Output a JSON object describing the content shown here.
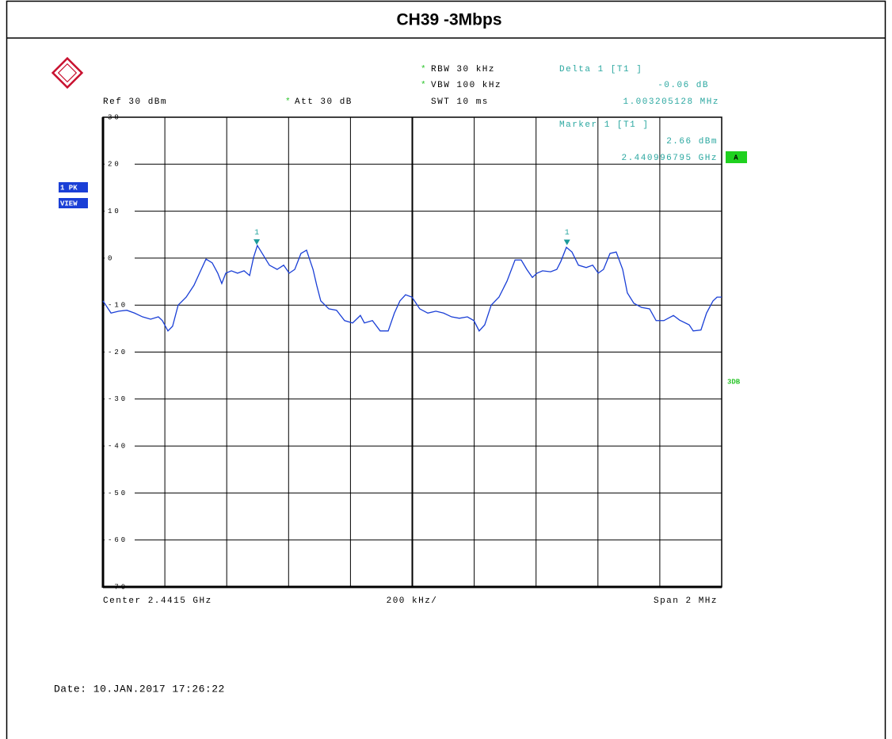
{
  "chart_data": {
    "type": "line",
    "title": "CH39 -3Mbps",
    "star": "*",
    "rbw": "RBW 30 kHz",
    "vbw": "VBW 100 kHz",
    "swt": "SWT 10 ms",
    "ref": "Ref 30 dBm",
    "att": "Att 30 dB",
    "delta_title": "Delta 1 [T1 ]",
    "delta_level": "-0.06 dB",
    "delta_freq": "1.003205128 MHz",
    "marker_title": "Marker 1 [T1 ]",
    "marker_level": "2.66 dBm",
    "marker_freq": "2.440996795 GHz",
    "side_a": "A",
    "trace_pk": "1 PK",
    "trace_view": "VIEW",
    "side_3db": "3DB",
    "center": "Center 2.4415 GHz",
    "div": "200 kHz/",
    "span": "Span 2 MHz",
    "date": "Date: 10.JAN.2017 17:26:22",
    "xlim": [
      2440.5,
      2442.5
    ],
    "ylim": [
      -70,
      30
    ],
    "yticks": [
      30,
      20,
      10,
      0,
      -10,
      -20,
      -30,
      -40,
      -50,
      -60,
      -70
    ],
    "grid": true,
    "x": [
      2440.5,
      2440.526,
      2440.551,
      2440.577,
      2440.602,
      2440.628,
      2440.654,
      2440.679,
      2440.692,
      2440.71,
      2440.725,
      2440.743,
      2440.769,
      2440.794,
      2440.812,
      2440.833,
      2440.853,
      2440.871,
      2440.884,
      2440.897,
      2440.915,
      2440.935,
      2440.956,
      2440.974,
      2440.987,
      2440.999,
      2441.012,
      2441.038,
      2441.063,
      2441.084,
      2441.102,
      2441.12,
      2441.14,
      2441.158,
      2441.179,
      2441.191,
      2441.204,
      2441.23,
      2441.255,
      2441.281,
      2441.307,
      2441.332,
      2441.345,
      2441.371,
      2441.396,
      2441.422,
      2441.442,
      2441.46,
      2441.478,
      2441.499,
      2441.524,
      2441.55,
      2441.576,
      2441.601,
      2441.627,
      2441.652,
      2441.678,
      2441.699,
      2441.716,
      2441.734,
      2441.755,
      2441.78,
      2441.806,
      2441.832,
      2441.852,
      2441.87,
      2441.888,
      2441.903,
      2441.921,
      2441.947,
      2441.967,
      2441.98,
      2441.998,
      2442.016,
      2442.037,
      2442.062,
      2442.083,
      2442.101,
      2442.118,
      2442.139,
      2442.159,
      2442.18,
      2442.195,
      2442.216,
      2442.241,
      2442.267,
      2442.288,
      2442.313,
      2442.344,
      2442.364,
      2442.395,
      2442.408,
      2442.433,
      2442.451,
      2442.472,
      2442.485,
      2442.5
    ],
    "series": [
      {
        "name": "1 PK",
        "color": "#1a3fd6",
        "values": [
          -9.1,
          -11.7,
          -11.3,
          -11.1,
          -11.7,
          -12.5,
          -13.0,
          -12.5,
          -13.3,
          -15.5,
          -14.5,
          -10.0,
          -8.3,
          -5.8,
          -3.2,
          -0.2,
          -1.0,
          -3.2,
          -5.4,
          -3.2,
          -2.7,
          -3.2,
          -2.7,
          -3.7,
          0.2,
          2.7,
          1.3,
          -1.5,
          -2.4,
          -1.5,
          -3.2,
          -2.4,
          1.0,
          1.7,
          -2.4,
          -5.8,
          -9.1,
          -10.8,
          -11.1,
          -13.3,
          -13.8,
          -12.2,
          -13.8,
          -13.3,
          -15.5,
          -15.5,
          -11.7,
          -9.1,
          -7.8,
          -8.3,
          -10.8,
          -11.7,
          -11.3,
          -11.7,
          -12.5,
          -12.8,
          -12.5,
          -13.3,
          -15.5,
          -14.2,
          -10.0,
          -8.3,
          -4.9,
          -0.4,
          -0.4,
          -2.4,
          -4.1,
          -3.2,
          -2.7,
          -2.9,
          -2.4,
          -0.7,
          2.3,
          1.3,
          -1.5,
          -2.0,
          -1.5,
          -3.2,
          -2.4,
          1.0,
          1.3,
          -2.4,
          -7.4,
          -9.6,
          -10.5,
          -10.8,
          -13.3,
          -13.3,
          -12.2,
          -13.2,
          -14.2,
          -15.5,
          -15.3,
          -11.7,
          -9.1,
          -8.3,
          -8.3
        ]
      }
    ],
    "markers": [
      {
        "label": "1",
        "x": 2440.997,
        "y": 2.66,
        "color": "#1a9a9a"
      },
      {
        "label": "1",
        "x": 2442.0,
        "y": 2.6,
        "color": "#1a9a9a"
      }
    ]
  }
}
